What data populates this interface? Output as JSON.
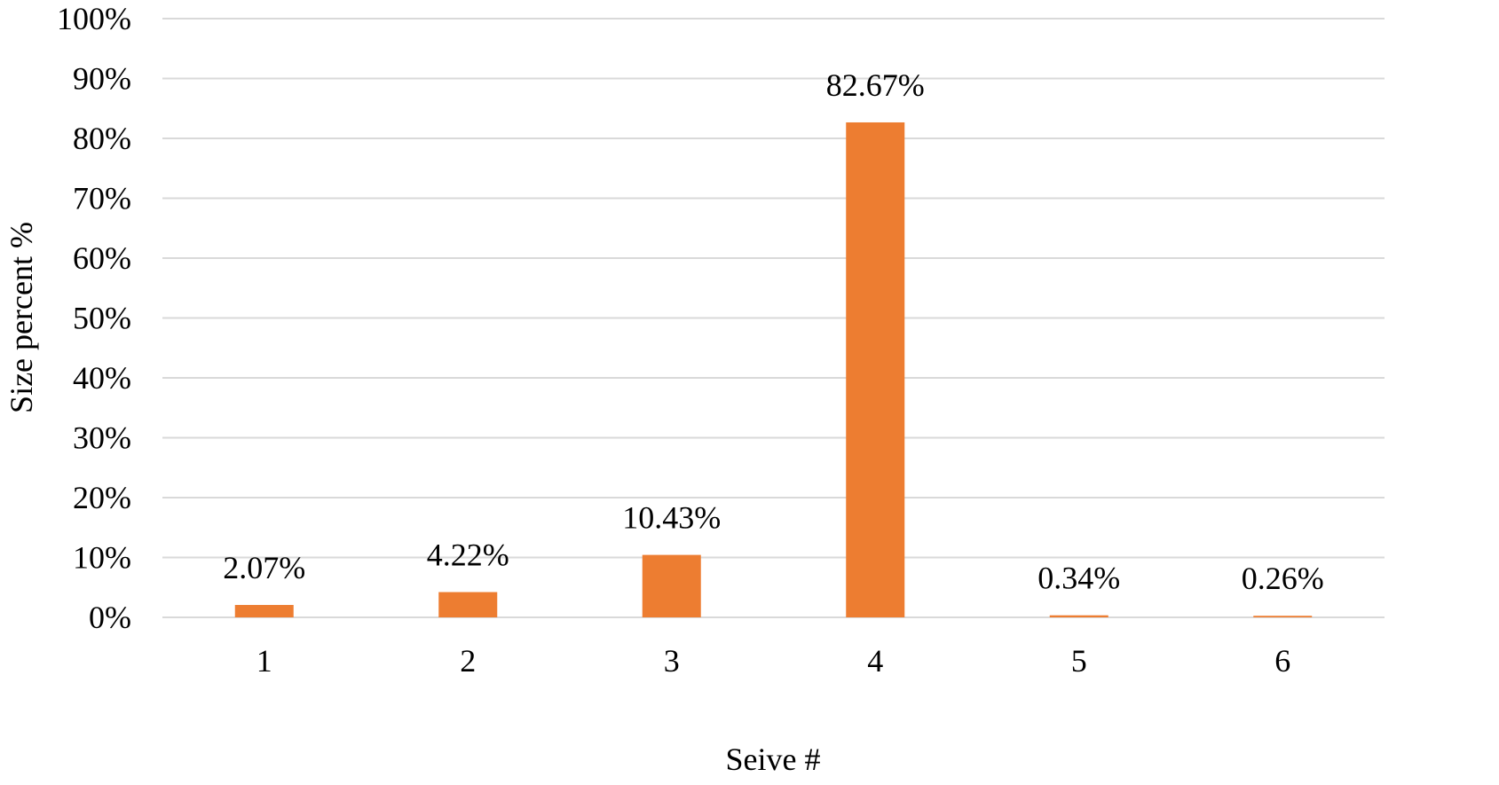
{
  "chart_data": {
    "type": "bar",
    "title": "",
    "xlabel": "Seive #",
    "ylabel": "Size percent %",
    "categories": [
      "1",
      "2",
      "3",
      "4",
      "5",
      "6"
    ],
    "series": [
      {
        "values": [
          2.07,
          4.22,
          10.43,
          82.67,
          0.34,
          0.26
        ],
        "labels": [
          "2.07%",
          "4.22%",
          "10.43%",
          "82.67%",
          "0.34%",
          "0.26%"
        ],
        "color": "#ed7d31"
      }
    ],
    "ylim": [
      0,
      100
    ],
    "yticks": [
      0,
      10,
      20,
      30,
      40,
      50,
      60,
      70,
      80,
      90,
      100
    ],
    "ytick_labels": [
      "0%",
      "10%",
      "20%",
      "30%",
      "40%",
      "50%",
      "60%",
      "70%",
      "80%",
      "90%",
      "100%"
    ],
    "grid": true,
    "legend": "none",
    "gridline_color": "#d9d9d9"
  }
}
